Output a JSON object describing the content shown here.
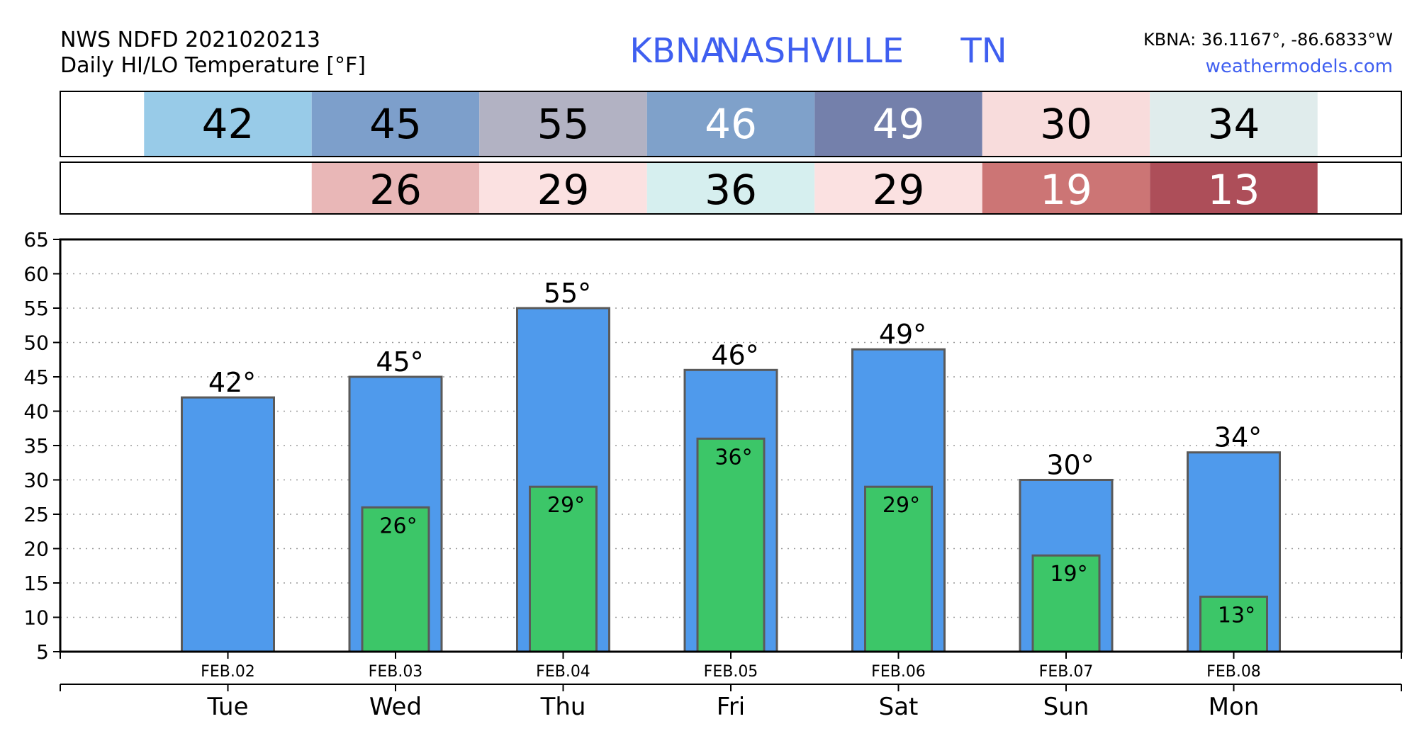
{
  "header": {
    "source_line": "NWS NDFD 2021020213",
    "product_line": "Daily HI/LO Temperature [°F]",
    "station_id": "KBNA",
    "station_name": "NASHVILLE",
    "state": "TN",
    "coords": "KBNA: 36.1167°, -86.6833°W",
    "site": "weathermodels.com"
  },
  "hi_strip": [
    {
      "value": "42",
      "bg": "#98cbe8",
      "fg": "#000000"
    },
    {
      "value": "45",
      "bg": "#7d9fcb",
      "fg": "#000000"
    },
    {
      "value": "55",
      "bg": "#b2b2c3",
      "fg": "#000000"
    },
    {
      "value": "46",
      "bg": "#7fa1ca",
      "fg": "#ffffff"
    },
    {
      "value": "49",
      "bg": "#7480ab",
      "fg": "#ffffff"
    },
    {
      "value": "30",
      "bg": "#f8dcdc",
      "fg": "#000000"
    },
    {
      "value": "34",
      "bg": "#e0ecec",
      "fg": "#000000"
    }
  ],
  "lo_strip": [
    {
      "value": "",
      "bg": "#ffffff",
      "fg": "#000000"
    },
    {
      "value": "26",
      "bg": "#e9b7b7",
      "fg": "#000000"
    },
    {
      "value": "29",
      "bg": "#fbe1e1",
      "fg": "#000000"
    },
    {
      "value": "36",
      "bg": "#d6efef",
      "fg": "#000000"
    },
    {
      "value": "29",
      "bg": "#fbe1e1",
      "fg": "#000000"
    },
    {
      "value": "19",
      "bg": "#cc7575",
      "fg": "#ffffff"
    },
    {
      "value": "13",
      "bg": "#ad4e59",
      "fg": "#ffffff"
    }
  ],
  "chart_data": {
    "type": "bar",
    "categories": [
      "Tue",
      "Wed",
      "Thu",
      "Fri",
      "Sat",
      "Sun",
      "Mon"
    ],
    "dates": [
      "FEB.02",
      "FEB.03",
      "FEB.04",
      "FEB.05",
      "FEB.06",
      "FEB.07",
      "FEB.08"
    ],
    "series": [
      {
        "values": [
          42,
          45,
          55,
          46,
          49,
          30,
          34
        ],
        "labels": [
          "42°",
          "45°",
          "55°",
          "46°",
          "49°",
          "30°",
          "34°"
        ],
        "color": "#4f9aec"
      },
      {
        "values": [
          null,
          26,
          29,
          36,
          29,
          19,
          13
        ],
        "labels": [
          "",
          "26°",
          "29°",
          "36°",
          "29°",
          "19°",
          "13°"
        ],
        "color": "#3cc668"
      }
    ],
    "ylim": [
      5,
      65
    ],
    "yticks": [
      "5",
      "10",
      "15",
      "20",
      "25",
      "30",
      "35",
      "40",
      "45",
      "50",
      "55",
      "60",
      "65"
    ],
    "grid": true,
    "title": "",
    "xlabel": "",
    "ylabel": ""
  }
}
